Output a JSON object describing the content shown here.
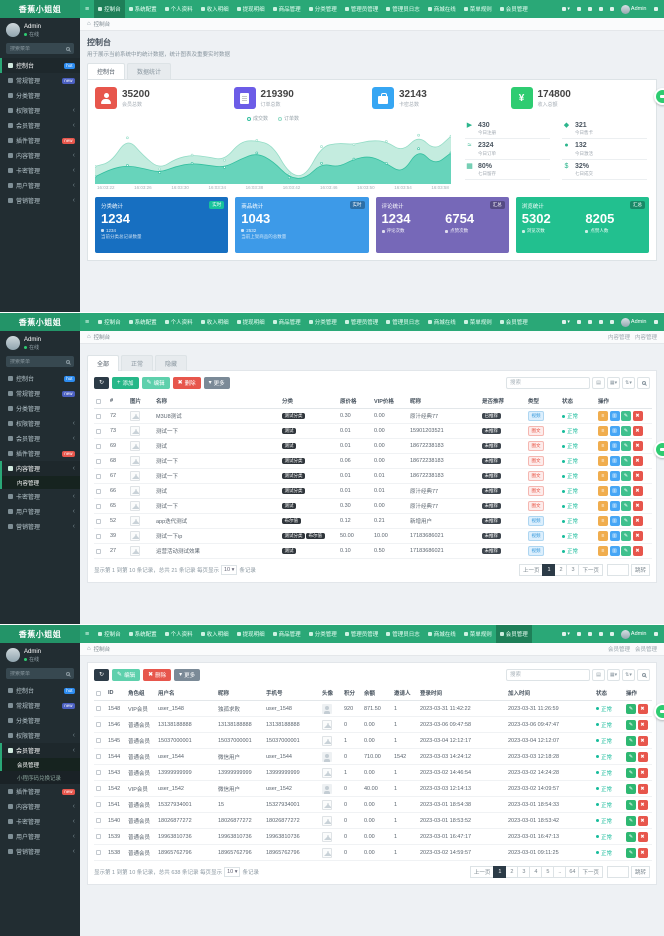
{
  "brand": "香蕉小姐姐",
  "palette": {
    "navbar_green": "#2aa877",
    "navbar_active": "#1e7f58",
    "sidebar_bg": "#222d32",
    "accent": "#18bc9c",
    "danger": "#e7564c",
    "warning": "#f0ad4e",
    "info": "#46a6f5",
    "status_ok": "#18bc9c"
  },
  "topnav": {
    "items": [
      {
        "label": "控制台",
        "icon": "dashboard-icon"
      },
      {
        "label": "系统配置",
        "icon": "gear-icon"
      },
      {
        "label": "个人资料",
        "icon": "user-icon"
      },
      {
        "label": "收入明细",
        "icon": "bar-chart-icon"
      },
      {
        "label": "提现明细",
        "icon": "line-chart-icon"
      },
      {
        "label": "商品管理",
        "icon": "cube-icon"
      },
      {
        "label": "分类管理",
        "icon": "tags-icon"
      },
      {
        "label": "管理员管理",
        "icon": "admin-icon"
      },
      {
        "label": "管理员日志",
        "icon": "log-icon"
      },
      {
        "label": "商城在线",
        "icon": "shop-icon"
      },
      {
        "label": "菜单规则",
        "icon": "list-icon"
      },
      {
        "label": "会员管理",
        "icon": "member-icon"
      }
    ],
    "right_icons": [
      "home-icon",
      "bell-icon",
      "clear-cache-icon",
      "close-tabs-icon"
    ],
    "admin": "Admin"
  },
  "sidebar": {
    "user": {
      "name": "Admin",
      "status": "在线"
    },
    "search_placeholder": "搜索菜单",
    "items": [
      {
        "label": "控制台",
        "icon": "dashboard-icon",
        "badge": "hot",
        "badge_color": "#2d8cf0"
      },
      {
        "label": "常规管理",
        "icon": "gears-icon",
        "badge": "new",
        "badge_color": "#4a5fc1"
      },
      {
        "label": "分类管理",
        "icon": "tags-icon"
      },
      {
        "label": "权限管理",
        "icon": "shield-icon",
        "arrow": true
      },
      {
        "label": "会员管理",
        "icon": "users-icon",
        "arrow": true
      },
      {
        "label": "插件管理",
        "icon": "plug-icon",
        "badge": "new",
        "badge_color": "#e7564c"
      },
      {
        "label": "内容管理",
        "icon": "file-icon",
        "arrow": true
      },
      {
        "label": "卡密管理",
        "icon": "card-icon",
        "arrow": true
      },
      {
        "label": "用户管理",
        "icon": "user-icon",
        "arrow": true
      },
      {
        "label": "营销管理",
        "icon": "chart-icon",
        "arrow": true
      }
    ]
  },
  "sections": {
    "s1": {
      "breadcrumb": "控制台",
      "nav_active": 0,
      "sidebar_active": 0,
      "title": "控制台",
      "subtitle": "用于展示当前系统中的统计数据，统计图表及重要实时数据",
      "tabs": [
        "控制台",
        "数据统计"
      ],
      "active_tab": 0,
      "stats": [
        {
          "value": "35200",
          "label": "会员总数",
          "color": "#e7564c",
          "icon": "members-icon",
          "shape": "i-person"
        },
        {
          "value": "219390",
          "label": "订单总数",
          "color": "#6c5ce7",
          "icon": "orders-icon",
          "shape": "i-file"
        },
        {
          "value": "32143",
          "label": "卡密总数",
          "color": "#36a6f3",
          "icon": "bag-icon",
          "shape": "i-bag"
        },
        {
          "value": "174800",
          "label": "收入总额",
          "color": "#2ecc71",
          "icon": "yen-icon",
          "glyph": "¥"
        }
      ],
      "chart": {
        "type": "area",
        "x": [
          "16:03:22",
          "16:03:26",
          "16:03:30",
          "16:03:34",
          "16:03:38",
          "16:03:42",
          "16:03:46",
          "16:03:50",
          "16:03:54",
          "16:03:58"
        ],
        "series": [
          {
            "name": "订单数",
            "fill": "#bce9db",
            "line": "#93dcc6",
            "values": [
              30,
              38,
              85,
              50,
              25,
              45,
              52,
              48,
              42,
              78,
              80,
              70,
              15,
              10,
              68,
              75,
              72,
              80,
              78,
              58,
              90,
              60,
              88
            ]
          },
          {
            "name": "成交数",
            "fill": "#5ad0b6",
            "line": "#33bf9f",
            "values": [
              10,
              25,
              32,
              26,
              18,
              30,
              36,
              32,
              28,
              44,
              56,
              40,
              8,
              6,
              36,
              28,
              44,
              50,
              36,
              16,
              64,
              32,
              56
            ]
          }
        ]
      },
      "minis": [
        {
          "value": "430",
          "label": "今日注册",
          "icon": "send-icon",
          "glyph": "▶"
        },
        {
          "value": "321",
          "label": "今日售卡",
          "icon": "cart-icon",
          "glyph": "◆"
        },
        {
          "value": "2324",
          "label": "今日订单",
          "icon": "trend-icon",
          "glyph": "≈"
        },
        {
          "value": "132",
          "label": "今日激活",
          "icon": "group-icon",
          "glyph": "●"
        },
        {
          "value": "80%",
          "label": "七日留存",
          "icon": "calculator-icon",
          "glyph": "▦"
        },
        {
          "value": "32%",
          "label": "七日成交",
          "icon": "dollar-icon",
          "glyph": "$"
        }
      ],
      "big_cards": [
        {
          "title": "分类统计",
          "badge": "实时",
          "badge_style": "teal",
          "color": "#176fc1",
          "value": "1234",
          "foot": "1234",
          "desc": "当前分类总记录数量"
        },
        {
          "title": "商品统计",
          "badge": "实时",
          "badge_style": "dark",
          "color": "#3d9ae8",
          "value": "1043",
          "foot": "2532",
          "desc": "当前上架商品的总数量"
        },
        {
          "title": "评论统计",
          "badge": "汇总",
          "badge_style": "dark",
          "color": "#7668b8",
          "pairs": [
            {
              "value": "1234",
              "label": "评论次数"
            },
            {
              "value": "6754",
              "label": "点赞次数"
            }
          ]
        },
        {
          "title": "浏览统计",
          "badge": "汇总",
          "badge_style": "dark",
          "color": "#22c08f",
          "pairs": [
            {
              "value": "5302",
              "label": "浏览次数"
            },
            {
              "value": "8205",
              "label": "点赞人数"
            }
          ]
        }
      ]
    },
    "s2": {
      "breadcrumb": "控制台",
      "crumb_right": [
        "内容管理",
        "内容管理"
      ],
      "nav_active": -1,
      "sidebar_active": 6,
      "subitems": [
        {
          "label": "内容管理",
          "active": true
        }
      ],
      "tabs": [
        "全部",
        "正常",
        "隐藏"
      ],
      "active_tab": 0,
      "toolbar": [
        {
          "name": "refresh-button",
          "glyph": "↻",
          "color": "#2c3b47"
        },
        {
          "name": "add-button",
          "label": "添加",
          "glyph": "+",
          "color": "#26b788"
        },
        {
          "name": "edit-button",
          "label": "编辑",
          "glyph": "✎",
          "color": "#5ed0ac"
        },
        {
          "name": "delete-button",
          "label": "删除",
          "glyph": "✖",
          "color": "#e7564c"
        },
        {
          "name": "more-button",
          "label": "更多",
          "glyph": "▾",
          "color": "#7b8a97"
        }
      ],
      "search_placeholder": "搜索",
      "cols": [
        "#",
        "图片",
        "名称",
        "分类",
        "原价格",
        "VIP价格",
        "昵称",
        "是否推荐",
        "类型",
        "状态",
        "操作"
      ],
      "ops": [
        {
          "name": "detail-button",
          "color": "#f0ad4e",
          "glyph": "≡"
        },
        {
          "name": "copy-button",
          "color": "#46a6f5",
          "glyph": "▥"
        },
        {
          "name": "edit-row-button",
          "color": "#3fc08d",
          "glyph": "✎"
        },
        {
          "name": "delete-row-button",
          "color": "#e7564c",
          "glyph": "✖"
        }
      ],
      "rows": [
        {
          "id": "72",
          "name": "M3U8测试",
          "cats": [
            "测试分类"
          ],
          "price": "0.30",
          "vip": "0.00",
          "nick": "原汁经典77",
          "rec": "已推荐",
          "type": "视频",
          "type_style": "blue",
          "status": "正常"
        },
        {
          "id": "73",
          "name": "测试一下",
          "cats": [
            "测试"
          ],
          "price": "0.01",
          "vip": "0.00",
          "nick": "15901203521",
          "rec": "未推荐",
          "type": "图文",
          "type_style": "red",
          "status": "正常"
        },
        {
          "id": "69",
          "name": "测试",
          "cats": [
            "测试"
          ],
          "price": "0.01",
          "vip": "0.00",
          "nick": "18672238183",
          "rec": "未推荐",
          "type": "图文",
          "type_style": "red",
          "status": "正常"
        },
        {
          "id": "68",
          "name": "测试一下",
          "cats": [
            "测试分类"
          ],
          "price": "0.06",
          "vip": "0.00",
          "nick": "18672238183",
          "rec": "未推荐",
          "type": "图文",
          "type_style": "red",
          "status": "正常"
        },
        {
          "id": "67",
          "name": "测试一下",
          "cats": [
            "测试分类"
          ],
          "price": "0.01",
          "vip": "0.01",
          "nick": "18672238183",
          "rec": "未推荐",
          "type": "图文",
          "type_style": "red",
          "status": "正常"
        },
        {
          "id": "66",
          "name": "测试",
          "cats": [
            "测试分类"
          ],
          "price": "0.01",
          "vip": "0.01",
          "nick": "原汁经典77",
          "rec": "未推荐",
          "type": "图文",
          "type_style": "red",
          "status": "正常"
        },
        {
          "id": "65",
          "name": "测试一下",
          "cats": [
            "测试"
          ],
          "price": "0.30",
          "vip": "0.00",
          "nick": "原汁经典77",
          "rec": "未推荐",
          "type": "图文",
          "type_style": "red",
          "status": "正常"
        },
        {
          "id": "52",
          "name": "app迭代测试",
          "cats": [
            "布尔值"
          ],
          "price": "0.12",
          "vip": "0.21",
          "nick": "新增用户",
          "rec": "未推荐",
          "type": "视频",
          "type_style": "blue",
          "status": "正常"
        },
        {
          "id": "39",
          "name": "测试一下ip",
          "cats": [
            "测试分类",
            "布尔值"
          ],
          "price": "50.00",
          "vip": "10.00",
          "nick": "17183686021",
          "rec": "未推荐",
          "type": "视频",
          "type_style": "blue",
          "status": "正常"
        },
        {
          "id": "27",
          "name": "运营活动测试效果",
          "cats": [
            "测试"
          ],
          "price": "0.10",
          "vip": "0.50",
          "nick": "17183686021",
          "rec": "未推荐",
          "type": "视频",
          "type_style": "blue",
          "status": "正常"
        }
      ],
      "pager": {
        "info": "显示第 1 到第 10 条记录，总共 21 条记录 每页显示",
        "per": "10",
        "suffix": "条记录",
        "pages": [
          "上一页",
          "1",
          "2",
          "3",
          "下一页"
        ],
        "active_page": "1",
        "jump_label": "跳转"
      }
    },
    "s3": {
      "breadcrumb": "控制台",
      "crumb_right": [
        "会员管理",
        "会员管理"
      ],
      "nav_active": 11,
      "sidebar_active": 4,
      "subitems": [
        {
          "label": "会员管理",
          "active": true
        },
        {
          "label": "小程序码兑换记录",
          "active": false
        }
      ],
      "toolbar": [
        {
          "name": "refresh-button",
          "glyph": "↻",
          "color": "#2c3b47"
        },
        {
          "name": "edit-button",
          "label": "编辑",
          "glyph": "✎",
          "color": "#5ed0ac"
        },
        {
          "name": "delete-button",
          "label": "删除",
          "glyph": "✖",
          "color": "#e7564c"
        },
        {
          "name": "more-button",
          "label": "更多",
          "glyph": "▾",
          "color": "#7b8a97"
        }
      ],
      "search_placeholder": "搜索",
      "cols": [
        "ID",
        "角色组",
        "用户名",
        "昵称",
        "手机号",
        "头像",
        "积分",
        "余额",
        "邀请人",
        "登录时间",
        "加入时间",
        "状态",
        "操作"
      ],
      "ops": [
        {
          "name": "edit-row-button",
          "color": "#2eb872",
          "glyph": "✎"
        },
        {
          "name": "delete-row-button",
          "color": "#e7564c",
          "glyph": "✖"
        }
      ],
      "rows": [
        {
          "id": "1548",
          "group": "VIP会员",
          "username": "user_1548",
          "nick": "独孤求败",
          "phone": "user_1548",
          "avatar": "icon",
          "score": "920",
          "money": "871.50",
          "inviter": "1",
          "login": "2023-03-31 11:42:22",
          "join": "2023-03-31 11:26:59",
          "status": "正常"
        },
        {
          "id": "1546",
          "group": "普通会员",
          "username": "13138188888",
          "nick": "13138188888",
          "phone": "13138188888",
          "avatar": "img",
          "score": "0",
          "money": "0.00",
          "inviter": "1",
          "login": "2023-03-06 09:47:58",
          "join": "2023-03-06 09:47:47",
          "status": "正常"
        },
        {
          "id": "1545",
          "group": "普通会员",
          "username": "15037000001",
          "nick": "15037000001",
          "phone": "15037000001",
          "avatar": "img",
          "score": "1",
          "money": "0.00",
          "inviter": "1",
          "login": "2023-03-04 12:12:17",
          "join": "2023-03-04 12:12:07",
          "status": "正常"
        },
        {
          "id": "1544",
          "group": "普通会员",
          "username": "user_1544",
          "nick": "微信用户",
          "phone": "user_1544",
          "avatar": "icon",
          "score": "0",
          "money": "710.00",
          "inviter": "1542",
          "login": "2023-03-03 14:24:12",
          "join": "2023-03-03 12:18:28",
          "status": "正常"
        },
        {
          "id": "1543",
          "group": "普通会员",
          "username": "13999999999",
          "nick": "13999999999",
          "phone": "13999999999",
          "avatar": "img",
          "score": "1",
          "money": "0.00",
          "inviter": "1",
          "login": "2023-03-02 14:46:54",
          "join": "2023-03-02 14:24:28",
          "status": "正常"
        },
        {
          "id": "1542",
          "group": "VIP会员",
          "username": "user_1542",
          "nick": "微信用户",
          "phone": "user_1542",
          "avatar": "icon",
          "score": "0",
          "money": "40.00",
          "inviter": "1",
          "login": "2023-03-03 12:14:13",
          "join": "2023-03-02 14:09:57",
          "status": "正常"
        },
        {
          "id": "1541",
          "group": "普通会员",
          "username": "15327934001",
          "nick": "15",
          "phone": "15327934001",
          "avatar": "img",
          "score": "0",
          "money": "0.00",
          "inviter": "1",
          "login": "2023-03-01 18:54:38",
          "join": "2023-03-01 18:54:33",
          "status": "正常"
        },
        {
          "id": "1540",
          "group": "普通会员",
          "username": "18026877272",
          "nick": "18026877272",
          "phone": "18026877272",
          "avatar": "img",
          "score": "0",
          "money": "0.00",
          "inviter": "1",
          "login": "2023-03-01 18:53:52",
          "join": "2023-03-01 18:53:42",
          "status": "正常"
        },
        {
          "id": "1539",
          "group": "普通会员",
          "username": "19963810736",
          "nick": "19963810736",
          "phone": "19963810736",
          "avatar": "img",
          "score": "0",
          "money": "0.00",
          "inviter": "1",
          "login": "2023-03-01 16:47:17",
          "join": "2023-03-01 16:47:13",
          "status": "正常"
        },
        {
          "id": "1538",
          "group": "普通会员",
          "username": "18965762796",
          "nick": "18965762796",
          "phone": "18965762796",
          "avatar": "img",
          "score": "0",
          "money": "0.00",
          "inviter": "1",
          "login": "2023-03-02 14:59:57",
          "join": "2023-03-01 09:11:25",
          "status": "正常"
        }
      ],
      "pager": {
        "info": "显示第 1 到第 10 条记录，总共 638 条记录 每页显示",
        "per": "10",
        "suffix": "条记录",
        "pages": [
          "上一页",
          "1",
          "2",
          "3",
          "4",
          "5",
          "..",
          "64",
          "下一页"
        ],
        "active_page": "1",
        "jump_label": "跳转"
      }
    }
  }
}
